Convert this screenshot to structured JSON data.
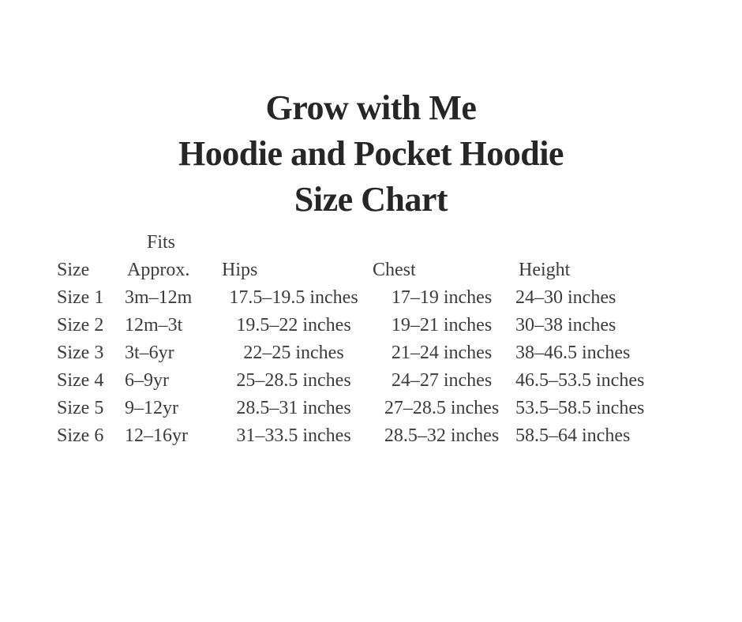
{
  "colors": {
    "background": "#ffffff",
    "title": "#262626",
    "body_text": "#3b3b3b"
  },
  "title": {
    "line1": "Grow with Me",
    "line2": "Hoodie and Pocket Hoodie",
    "line3": "Size Chart"
  },
  "size_chart": {
    "header": {
      "size": "Size",
      "fits_top": "Fits",
      "fits_bottom": "Approx.",
      "hips": "Hips",
      "chest": "Chest",
      "height": "Height"
    },
    "rows": [
      {
        "size": "Size 1",
        "fits": "3m–12m",
        "hips": "17.5–19.5 inches",
        "chest": "17–19 inches",
        "height": "24–30 inches"
      },
      {
        "size": "Size 2",
        "fits": "12m–3t",
        "hips": "19.5–22 inches",
        "chest": "19–21 inches",
        "height": "30–38 inches"
      },
      {
        "size": "Size 3",
        "fits": "3t–6yr",
        "hips": "22–25 inches",
        "chest": "21–24 inches",
        "height": "38–46.5 inches"
      },
      {
        "size": "Size 4",
        "fits": "6–9yr",
        "hips": "25–28.5 inches",
        "chest": "24–27 inches",
        "height": "46.5–53.5 inches"
      },
      {
        "size": "Size 5",
        "fits": "9–12yr",
        "hips": "28.5–31 inches",
        "chest": "27–28.5 inches",
        "height": "53.5–58.5 inches"
      },
      {
        "size": "Size 6",
        "fits": "12–16yr",
        "hips": "31–33.5 inches",
        "chest": "28.5–32 inches",
        "height": "58.5–64 inches"
      }
    ]
  }
}
